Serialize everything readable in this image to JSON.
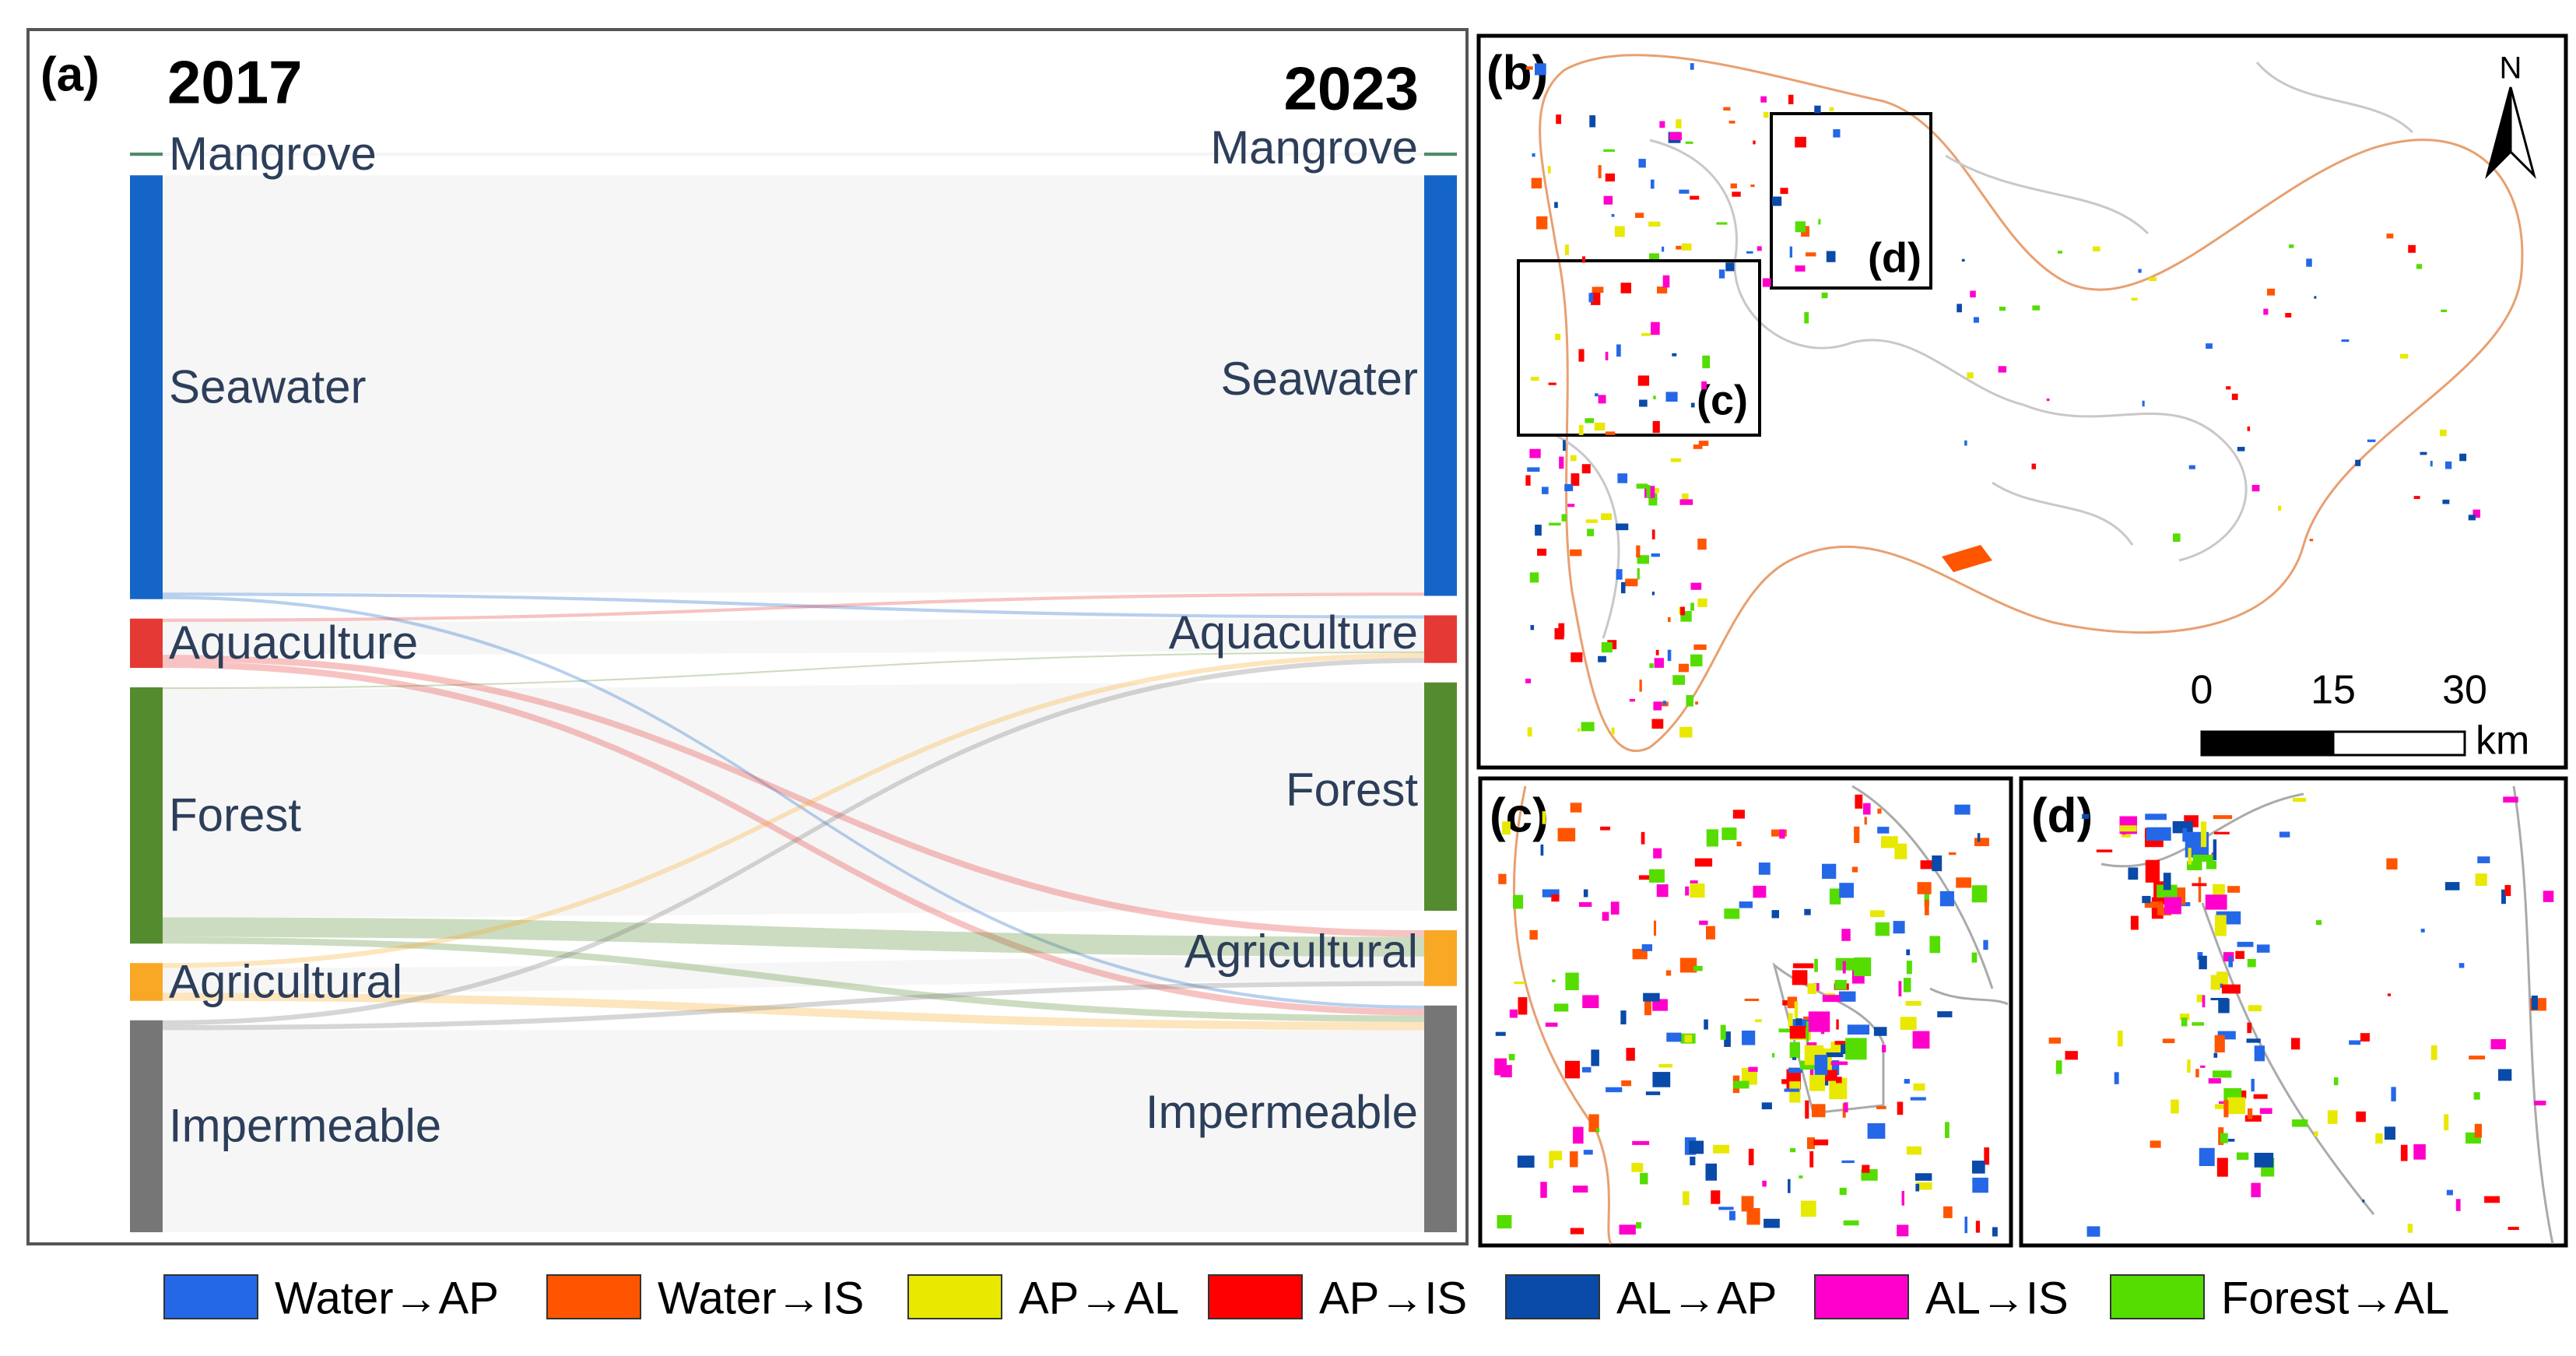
{
  "chart_data": {
    "type": "sankey",
    "panel_label": "(a)",
    "left_title": "2017",
    "right_title": "2023",
    "nodes": [
      {
        "name": "Mangrove",
        "color": "#4f8a6a"
      },
      {
        "name": "Seawater",
        "color": "#1565c8"
      },
      {
        "name": "Aquaculture",
        "color": "#e53935"
      },
      {
        "name": "Forest",
        "color": "#558b2f"
      },
      {
        "name": "Agricultural",
        "color": "#f9a825"
      },
      {
        "name": "Impermeable",
        "color": "#767676"
      }
    ],
    "flows": [
      {
        "source": "Mangrove",
        "target": "Mangrove",
        "value": 2
      },
      {
        "source": "Seawater",
        "target": "Seawater",
        "value": 254
      },
      {
        "source": "Seawater",
        "target": "Aquaculture",
        "value": 2
      },
      {
        "source": "Seawater",
        "target": "Impermeable",
        "value": 2
      },
      {
        "source": "Aquaculture",
        "target": "Seawater",
        "value": 2
      },
      {
        "source": "Aquaculture",
        "target": "Aquaculture",
        "value": 20
      },
      {
        "source": "Aquaculture",
        "target": "Agricultural",
        "value": 4
      },
      {
        "source": "Aquaculture",
        "target": "Impermeable",
        "value": 4
      },
      {
        "source": "Forest",
        "target": "Aquaculture",
        "value": 1
      },
      {
        "source": "Forest",
        "target": "Forest",
        "value": 139
      },
      {
        "source": "Forest",
        "target": "Agricultural",
        "value": 12
      },
      {
        "source": "Forest",
        "target": "Impermeable",
        "value": 4
      },
      {
        "source": "Agricultural",
        "target": "Aquaculture",
        "value": 3
      },
      {
        "source": "Agricultural",
        "target": "Agricultural",
        "value": 15
      },
      {
        "source": "Agricultural",
        "target": "Impermeable",
        "value": 5
      },
      {
        "source": "Impermeable",
        "target": "Aquaculture",
        "value": 3
      },
      {
        "source": "Impermeable",
        "target": "Agricultural",
        "value": 3
      },
      {
        "source": "Impermeable",
        "target": "Impermeable",
        "value": 123
      }
    ]
  },
  "maps": {
    "panels": [
      "(b)",
      "(c)",
      "(d)"
    ],
    "insets": [
      "(c)",
      "(d)"
    ],
    "north": "N",
    "scale": {
      "ticks": [
        0,
        15,
        30
      ],
      "unit": "km"
    }
  },
  "legend": {
    "items": [
      {
        "label": "Water→AP",
        "color": "#2468e8"
      },
      {
        "label": "Water→IS",
        "color": "#ff5500"
      },
      {
        "label": "AP→AL",
        "color": "#e8e800"
      },
      {
        "label": "AP→IS",
        "color": "#ff0000"
      },
      {
        "label": "AL→AP",
        "color": "#0a4aa8"
      },
      {
        "label": "AL→IS",
        "color": "#ff00cc"
      },
      {
        "label": "Forest→AL",
        "color": "#55dd00"
      }
    ]
  }
}
